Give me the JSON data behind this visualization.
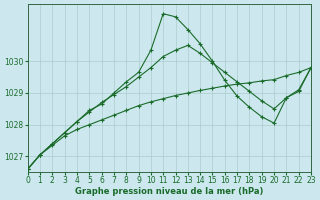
{
  "xlabel": "Graphe pression niveau de la mer (hPa)",
  "xlim": [
    0,
    23
  ],
  "ylim": [
    1026.5,
    1031.8
  ],
  "yticks": [
    1027,
    1028,
    1029,
    1030
  ],
  "xticks": [
    0,
    1,
    2,
    3,
    4,
    5,
    6,
    7,
    8,
    9,
    10,
    11,
    12,
    13,
    14,
    15,
    16,
    17,
    18,
    19,
    20,
    21,
    22,
    23
  ],
  "bg_color": "#cce8ee",
  "grid_color": "#aacccc",
  "line_color": "#1a6b2a",
  "line_sharp_y": [
    1026.6,
    1027.05,
    1027.4,
    1027.75,
    1028.1,
    1028.45,
    1028.65,
    1029.0,
    1029.35,
    1029.65,
    1030.35,
    1031.5,
    1031.4,
    1031.0,
    1030.55,
    1030.0,
    1029.4,
    1028.9,
    1028.55,
    1028.25,
    1028.05,
    1028.85,
    1029.1,
    1029.8
  ],
  "line_mid_y": [
    1026.6,
    1027.05,
    1027.4,
    1027.75,
    1028.1,
    1028.4,
    1028.7,
    1028.95,
    1029.2,
    1029.5,
    1029.8,
    1030.15,
    1030.35,
    1030.5,
    1030.25,
    1029.95,
    1029.65,
    1029.35,
    1029.05,
    1028.75,
    1028.5,
    1028.85,
    1029.05,
    1029.8
  ],
  "line_diag_y": [
    1026.6,
    1027.05,
    1027.35,
    1027.65,
    1027.85,
    1028.0,
    1028.15,
    1028.3,
    1028.45,
    1028.6,
    1028.72,
    1028.82,
    1028.92,
    1029.0,
    1029.08,
    1029.15,
    1029.22,
    1029.28,
    1029.32,
    1029.38,
    1029.42,
    1029.55,
    1029.65,
    1029.8
  ]
}
